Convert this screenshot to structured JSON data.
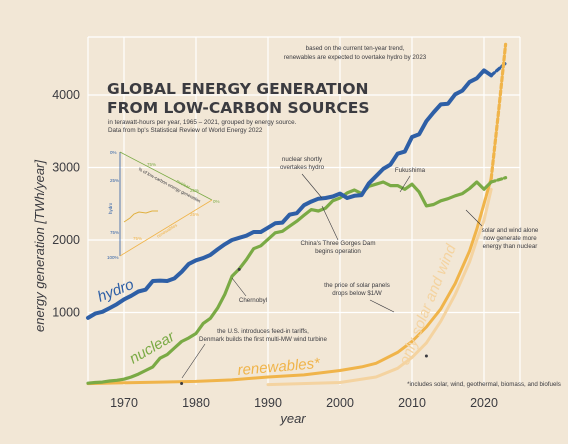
{
  "chart_data": {
    "type": "line",
    "title_lines": [
      "GLOBAL ENERGY GENERATION",
      "FROM LOW-CARBON SOURCES"
    ],
    "subtitle_lines": [
      "in terawatt-hours per year, 1965 – 2021, grouped by energy source.",
      "Data from bp's Statistical Review of World Energy 2022"
    ],
    "xlabel": "year",
    "ylabel": "energy generation [TWh/year]",
    "xlim": [
      1965,
      2025
    ],
    "ylim": [
      0,
      4800
    ],
    "x_ticks": [
      1970,
      1980,
      1990,
      2000,
      2010,
      2020
    ],
    "y_ticks": [
      1000,
      2000,
      3000,
      4000
    ],
    "grid": true,
    "series": [
      {
        "name": "hydro",
        "color": "#2e5fa6",
        "x": [
          1965,
          1966,
          1967,
          1968,
          1969,
          1970,
          1971,
          1972,
          1973,
          1974,
          1975,
          1976,
          1977,
          1978,
          1979,
          1980,
          1981,
          1982,
          1983,
          1984,
          1985,
          1986,
          1987,
          1988,
          1989,
          1990,
          1991,
          1992,
          1993,
          1994,
          1995,
          1996,
          1997,
          1998,
          1999,
          2000,
          2001,
          2002,
          2003,
          2004,
          2005,
          2006,
          2007,
          2008,
          2009,
          2010,
          2011,
          2012,
          2013,
          2014,
          2015,
          2016,
          2017,
          2018,
          2019,
          2020,
          2021
        ],
        "values": [
          925,
          985,
          1010,
          1060,
          1115,
          1180,
          1230,
          1290,
          1315,
          1435,
          1440,
          1435,
          1470,
          1560,
          1670,
          1720,
          1750,
          1795,
          1870,
          1940,
          2000,
          2030,
          2060,
          2110,
          2110,
          2170,
          2230,
          2240,
          2350,
          2370,
          2480,
          2530,
          2570,
          2580,
          2600,
          2640,
          2580,
          2610,
          2620,
          2780,
          2880,
          2980,
          3040,
          3190,
          3220,
          3420,
          3460,
          3640,
          3760,
          3870,
          3880,
          4010,
          4060,
          4180,
          4230,
          4340,
          4270
        ]
      },
      {
        "name": "nuclear",
        "color": "#7aaa45",
        "x": [
          1965,
          1966,
          1967,
          1968,
          1969,
          1970,
          1971,
          1972,
          1973,
          1974,
          1975,
          1976,
          1977,
          1978,
          1979,
          1980,
          1981,
          1982,
          1983,
          1984,
          1985,
          1986,
          1987,
          1988,
          1989,
          1990,
          1991,
          1992,
          1993,
          1994,
          1995,
          1996,
          1997,
          1998,
          1999,
          2000,
          2001,
          2002,
          2003,
          2004,
          2005,
          2006,
          2007,
          2008,
          2009,
          2010,
          2011,
          2012,
          2013,
          2014,
          2015,
          2016,
          2017,
          2018,
          2019,
          2020,
          2021
        ],
        "values": [
          25,
          35,
          40,
          55,
          65,
          80,
          110,
          150,
          200,
          250,
          370,
          420,
          510,
          600,
          650,
          710,
          850,
          920,
          1060,
          1250,
          1500,
          1600,
          1730,
          1880,
          1920,
          2010,
          2100,
          2120,
          2190,
          2260,
          2340,
          2420,
          2400,
          2440,
          2540,
          2580,
          2650,
          2690,
          2640,
          2740,
          2770,
          2800,
          2750,
          2750,
          2700,
          2770,
          2660,
          2470,
          2490,
          2540,
          2570,
          2610,
          2640,
          2710,
          2800,
          2700,
          2800
        ]
      },
      {
        "name": "renewables*",
        "color": "#f0b44a",
        "x": [
          1965,
          1970,
          1975,
          1980,
          1985,
          1990,
          1995,
          2000,
          2003,
          2005,
          2008,
          2010,
          2012,
          2014,
          2016,
          2018,
          2019,
          2020,
          2021
        ],
        "values": [
          20,
          30,
          40,
          50,
          70,
          110,
          140,
          200,
          250,
          300,
          450,
          600,
          800,
          1050,
          1400,
          1850,
          2150,
          2500,
          2850
        ]
      },
      {
        "name": "only solar and wind",
        "color": "#f4d3a0",
        "x": [
          1990,
          2000,
          2005,
          2008,
          2010,
          2012,
          2014,
          2016,
          2018,
          2019,
          2020,
          2021
        ],
        "values": [
          5,
          35,
          110,
          230,
          380,
          580,
          880,
          1250,
          1700,
          2000,
          2270,
          2700
        ]
      }
    ],
    "projections": [
      {
        "series": "hydro",
        "x": [
          2021,
          2023
        ],
        "values": [
          4270,
          4440
        ]
      },
      {
        "series": "nuclear",
        "x": [
          2021,
          2023
        ],
        "values": [
          2800,
          2860
        ]
      },
      {
        "series": "renewables*",
        "x": [
          2021,
          2022,
          2023
        ],
        "values": [
          2850,
          3750,
          4700
        ]
      }
    ],
    "annotations": [
      {
        "text_lines": [
          "based on the current ten-year trend,",
          "renewables are expected to overtake hydro by 2023"
        ]
      },
      {
        "text_lines": [
          "nuclear shortly",
          "overtakes hydro"
        ]
      },
      {
        "text_lines": [
          "Fukushima"
        ]
      },
      {
        "text_lines": [
          "China's Three Gorges Dam",
          "begins operation"
        ]
      },
      {
        "text_lines": [
          "solar and wind alone",
          "now generate more",
          "energy than nuclear"
        ]
      },
      {
        "text_lines": [
          "Chernobyl"
        ]
      },
      {
        "text_lines": [
          "the price of solar panels",
          "drops below $1/W"
        ]
      },
      {
        "text_lines": [
          "the U.S. introduces feed-in tariffs,",
          "Denmark builds the first multi-MW wind turbine"
        ]
      },
      {
        "text_lines": [
          "*includes solar, wind, geothermal, biomass, and biofuels"
        ]
      }
    ],
    "ternary_labels": [
      "0%",
      "25%",
      "50%",
      "75%",
      "100%",
      "hydro",
      "nuclear",
      "renewables",
      "% of low-carbon energy generation"
    ]
  }
}
